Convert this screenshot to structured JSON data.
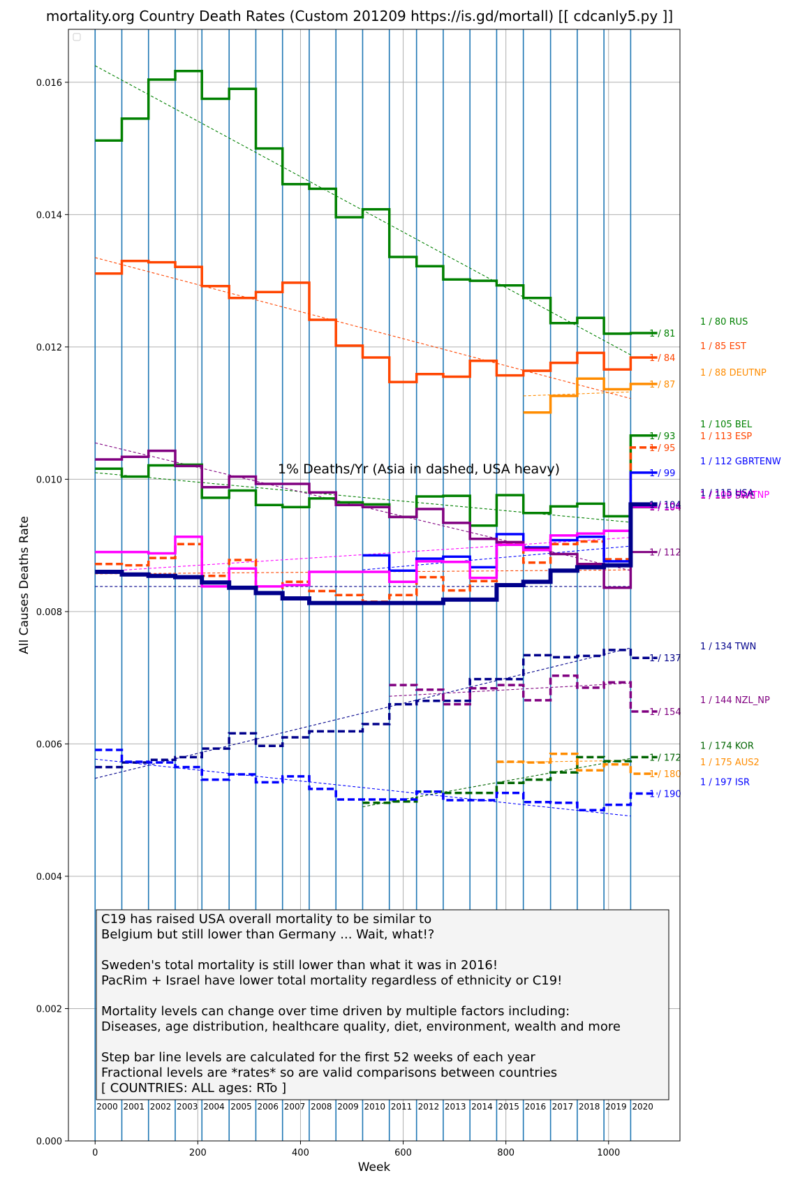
{
  "chart_data": {
    "type": "line",
    "title": "mortality.org Country Death Rates (Custom 201209  https://is.gd/mortall) [[ cdcanly5.py ]]",
    "xlabel": "Week",
    "ylabel": "All Causes Deaths Rate",
    "subtitle_annotation": "1% Deaths/Yr (Asia in dashed, USA heavy)",
    "xlim": [
      -52,
      1139
    ],
    "ylim": [
      0,
      0.0168
    ],
    "x_ticks": [
      {
        "value": 0,
        "label": "0"
      },
      {
        "value": 200,
        "label": "200"
      },
      {
        "value": 400,
        "label": "400"
      },
      {
        "value": 600,
        "label": "600"
      },
      {
        "value": 800,
        "label": "800"
      },
      {
        "value": 1000,
        "label": "1000"
      }
    ],
    "y_ticks": [
      {
        "value": 0,
        "label": "0.000"
      },
      {
        "value": 0.002,
        "label": "0.002"
      },
      {
        "value": 0.004,
        "label": "0.004"
      },
      {
        "value": 0.006,
        "label": "0.006"
      },
      {
        "value": 0.008,
        "label": "0.008"
      },
      {
        "value": 0.01,
        "label": "0.010"
      },
      {
        "value": 0.012,
        "label": "0.012"
      },
      {
        "value": 0.014,
        "label": "0.014"
      },
      {
        "value": 0.016,
        "label": "0.016"
      }
    ],
    "grid": true,
    "year_boundaries": [
      0,
      52,
      104,
      156,
      208,
      261,
      313,
      365,
      417,
      469,
      521,
      573,
      626,
      678,
      730,
      782,
      834,
      887,
      939,
      991,
      1043
    ],
    "year_labels": [
      "2000",
      "2001",
      "2002",
      "2003",
      "2004",
      "2005",
      "2006",
      "2007",
      "2008",
      "2009",
      "2010",
      "2011",
      "2012",
      "2013",
      "2014",
      "2015",
      "2016",
      "2017",
      "2018",
      "2019",
      "2020"
    ],
    "note_lines": [
      "C19 has raised USA overall mortality to be similar to",
      "Belgium but still lower than Germany ... Wait, what!?",
      "",
      "Sweden's total mortality is still lower than what it was in 2016!",
      "PacRim + Israel have lower total mortality regardless of ethnicity or C19!",
      "",
      "Mortality levels can change over time driven by multiple factors including:",
      "Diseases, age distribution, healthcare quality, diet, environment, wealth and more",
      "",
      "Step bar line levels are calculated for the first 52 weeks of each year",
      "Fractional levels are *rates* so are valid comparisons between countries",
      "          [ COUNTRIES: ALL ages: RTo ]"
    ],
    "series": [
      {
        "name": "RUS",
        "color": "#008000",
        "dash": false,
        "width": 3.5,
        "start_year": 2000,
        "values": [
          0.01512,
          0.01545,
          0.01604,
          0.01617,
          0.01575,
          0.0159,
          0.015,
          0.01446,
          0.01439,
          0.01396,
          0.01408,
          0.01336,
          0.01322,
          0.01302,
          0.013,
          0.01293,
          0.01274,
          0.01236,
          0.01244,
          0.0122,
          0.01221
        ],
        "trend": [
          0.01625,
          0.01188
        ],
        "end_label": "1 / 81",
        "far_label": "1 / 80 RUS"
      },
      {
        "name": "EST",
        "color": "#ff4500",
        "dash": false,
        "width": 3.5,
        "start_year": 2000,
        "values": [
          0.01311,
          0.0133,
          0.01328,
          0.01321,
          0.01292,
          0.01274,
          0.01283,
          0.01297,
          0.01241,
          0.01202,
          0.01184,
          0.01147,
          0.01159,
          0.01155,
          0.01179,
          0.01157,
          0.01164,
          0.01176,
          0.01191,
          0.01166,
          0.01184
        ],
        "trend": [
          0.01335,
          0.01122
        ],
        "end_label": "1 / 84",
        "far_label": "1 / 85 EST"
      },
      {
        "name": "DEUTNP",
        "color": "#ff8c00",
        "dash": false,
        "width": 3.5,
        "start_year": 2016,
        "values": [
          0.01101,
          0.01126,
          0.01152,
          0.01136,
          0.01144
        ],
        "trend": [
          0.01126,
          0.01132
        ],
        "end_label": "1 / 87",
        "far_label": "1 / 88 DEUTNP"
      },
      {
        "name": "BEL",
        "color": "#008000",
        "dash": false,
        "width": 3.5,
        "start_year": 2000,
        "values": [
          0.01016,
          0.01004,
          0.01021,
          0.01022,
          0.00972,
          0.00983,
          0.00961,
          0.00958,
          0.00971,
          0.00965,
          0.00962,
          0.00943,
          0.00974,
          0.00975,
          0.0093,
          0.00976,
          0.00949,
          0.00959,
          0.00963,
          0.00944,
          0.01066
        ],
        "trend": [
          0.0101,
          0.00935
        ],
        "end_label": "1 / 93",
        "far_label": "1 / 105 BEL"
      },
      {
        "name": "ESP",
        "color": "#ff4500",
        "dash": true,
        "width": 3.5,
        "start_year": 2000,
        "values": [
          0.00872,
          0.0087,
          0.00881,
          0.00902,
          0.00854,
          0.00878,
          0.00829,
          0.00845,
          0.00831,
          0.00825,
          0.00815,
          0.00825,
          0.00852,
          0.00832,
          0.00846,
          0.00903,
          0.00874,
          0.00902,
          0.00906,
          0.00879,
          0.01048
        ],
        "trend": [
          0.00857,
          0.00863
        ],
        "end_label": "1 / 95",
        "far_label": "1 / 113 ESP"
      },
      {
        "name": "GBRTENW",
        "color": "#0000ff",
        "dash": false,
        "width": 3.5,
        "start_year": 2010,
        "values": [
          0.00885,
          0.00862,
          0.0088,
          0.00883,
          0.00867,
          0.00917,
          0.00897,
          0.00908,
          0.00913,
          0.00876,
          0.0101
        ],
        "trend": [
          0.00863,
          0.00899
        ],
        "end_label": "1 / 99",
        "far_label": "1 / 112 GBRTENW"
      },
      {
        "name": "SWE",
        "color": "#800080",
        "dash": false,
        "width": 3.5,
        "start_year": 2000,
        "values": [
          0.0103,
          0.01034,
          0.01043,
          0.0102,
          0.00988,
          0.01004,
          0.00993,
          0.00993,
          0.0098,
          0.00961,
          0.00958,
          0.00943,
          0.00955,
          0.00934,
          0.0091,
          0.00905,
          0.00895,
          0.00887,
          0.00872,
          0.00836,
          0.00958
        ],
        "trend": [
          0.01055,
          0.00862
        ],
        "end_label": "1 / 104",
        "far_label": "1 / 119 SWE"
      },
      {
        "name": "FRATNP",
        "color": "#ff00ff",
        "dash": false,
        "width": 3.5,
        "start_year": 2000,
        "values": [
          0.0089,
          0.0089,
          0.00888,
          0.00913,
          0.00838,
          0.00865,
          0.00838,
          0.0084,
          0.0086,
          0.0086,
          0.0086,
          0.00845,
          0.00876,
          0.00875,
          0.00851,
          0.00901,
          0.00893,
          0.00915,
          0.00918,
          0.00922,
          0.00959
        ],
        "trend": [
          0.0086,
          0.00912
        ],
        "end_label": "1 / 104",
        "far_label": "1 / 108 FRATNP"
      },
      {
        "name": "NLD",
        "color": "#800080",
        "dash": false,
        "width": 3.0,
        "start_year": 2020,
        "values": [
          0.0089
        ],
        "trend": null,
        "end_label": "1 / 112",
        "far_label": ""
      },
      {
        "name": "USA",
        "color": "#00008b",
        "dash": false,
        "width": 6.0,
        "start_year": 2000,
        "values": [
          0.0086,
          0.00856,
          0.00854,
          0.00852,
          0.00844,
          0.00836,
          0.00828,
          0.0082,
          0.00813,
          0.00813,
          0.00813,
          0.00813,
          0.00813,
          0.00818,
          0.00818,
          0.0084,
          0.00845,
          0.00862,
          0.00867,
          0.0087,
          0.00962
        ],
        "trend": [
          0.00838,
          0.00838
        ],
        "end_label": "1 / 104",
        "far_label": "1 / 115 USA"
      },
      {
        "name": "TWN",
        "color": "#00008b",
        "dash": true,
        "width": 3.5,
        "start_year": 2000,
        "values": [
          0.00565,
          0.00572,
          0.00576,
          0.0058,
          0.00593,
          0.00616,
          0.00597,
          0.0061,
          0.00619,
          0.00619,
          0.0063,
          0.0066,
          0.00665,
          0.00665,
          0.00698,
          0.00698,
          0.00734,
          0.00731,
          0.00733,
          0.00742,
          0.0073
        ],
        "trend": [
          0.00548,
          0.00745
        ],
        "end_label": "1 / 137",
        "far_label": "1 / 134 TWN"
      },
      {
        "name": "NZL_NP",
        "color": "#800080",
        "dash": true,
        "width": 3.5,
        "start_year": 2011,
        "values": [
          0.00689,
          0.00682,
          0.0066,
          0.00684,
          0.00689,
          0.00666,
          0.00703,
          0.00685,
          0.00693,
          0.00649
        ],
        "trend": [
          0.00672,
          0.00692
        ],
        "end_label": "1 / 154",
        "far_label": "1 / 144 NZL_NP"
      },
      {
        "name": "KOR",
        "color": "#006400",
        "dash": true,
        "width": 3.5,
        "start_year": 2010,
        "values": [
          0.00511,
          0.00513,
          0.00528,
          0.00526,
          0.00526,
          0.00541,
          0.00546,
          0.00557,
          0.0058,
          0.00574,
          0.0058
        ],
        "trend": [
          0.00505,
          0.00578
        ],
        "end_label": "1 / 172",
        "far_label": "1 / 174 KOR"
      },
      {
        "name": "AUS2",
        "color": "#ff8c00",
        "dash": true,
        "width": 3.5,
        "start_year": 2015,
        "values": [
          0.00573,
          0.00572,
          0.00585,
          0.0056,
          0.00569,
          0.00555
        ],
        "trend": [
          0.00572,
          0.00575
        ],
        "end_label": "1 / 180",
        "far_label": "1 / 175 AUS2"
      },
      {
        "name": "ISR",
        "color": "#0000ff",
        "dash": true,
        "width": 3.5,
        "start_year": 2000,
        "values": [
          0.00591,
          0.00573,
          0.00572,
          0.00565,
          0.00546,
          0.00554,
          0.00542,
          0.00551,
          0.00532,
          0.00516,
          0.00516,
          0.00516,
          0.00528,
          0.00515,
          0.00515,
          0.00526,
          0.00512,
          0.00511,
          0.005,
          0.00508,
          0.00525
        ],
        "trend": [
          0.00577,
          0.00491
        ],
        "end_label": "1 / 190",
        "far_label": "1 / 197 ISR"
      }
    ]
  }
}
